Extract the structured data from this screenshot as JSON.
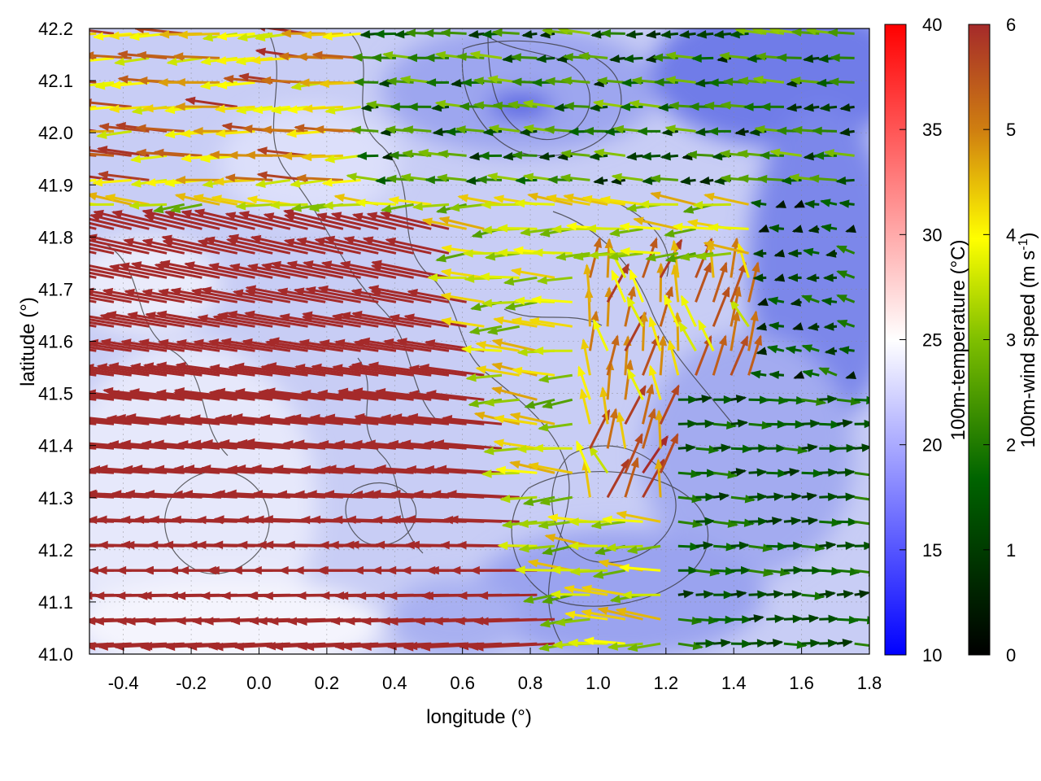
{
  "chart_data": {
    "type": "heatmap",
    "overlays": [
      "wind-vectors",
      "terrain-contours"
    ],
    "xlabel": "longitude (°)",
    "ylabel": "latitude (°)",
    "xlim": [
      -0.5,
      1.8
    ],
    "ylim": [
      41.0,
      42.2
    ],
    "x_ticks": [
      "-0.4",
      "-0.2",
      "0.0",
      "0.2",
      "0.4",
      "0.6",
      "0.8",
      "1.0",
      "1.2",
      "1.4",
      "1.6",
      "1.8"
    ],
    "y_ticks": [
      "41.0",
      "41.1",
      "41.2",
      "41.3",
      "41.4",
      "41.5",
      "41.6",
      "41.7",
      "41.8",
      "41.9",
      "42.0",
      "42.1",
      "42.2"
    ],
    "grid": true,
    "temperature_colorbar": {
      "label": "100m-temperature (°C)",
      "range": [
        10,
        40
      ],
      "ticks": [
        "10",
        "15",
        "20",
        "25",
        "30",
        "35",
        "40"
      ],
      "colors": [
        "#0000ff",
        "#ffffff",
        "#ff0000"
      ]
    },
    "wind_colorbar": {
      "label": "100m-wind speed (m s",
      "label_sup": "-1",
      "label_end": ")",
      "range": [
        0,
        6
      ],
      "ticks": [
        "0",
        "1",
        "2",
        "3",
        "4",
        "5",
        "6"
      ],
      "colors": [
        "#000000",
        "#006400",
        "#7fbf00",
        "#ffff00",
        "#d08010",
        "#a52a2a"
      ]
    },
    "temperature_field_description": "mostly 17-22 °C, warmer (~23-25 °C) in the west/southwest, cooler (~13-15 °C) in the northeast",
    "wind_field": {
      "west_sector": {
        "lon": [
          -0.5,
          0.9
        ],
        "direction": "from east (arrows pointing west)",
        "speed": 6
      },
      "central_sector": {
        "lon": [
          0.4,
          1.2
        ],
        "direction": "westward",
        "speed_range": [
          3,
          4.5
        ]
      },
      "north_sector": {
        "lat": [
          41.9,
          42.2
        ],
        "direction": "westward",
        "speed_range": [
          1,
          3
        ]
      },
      "east_coastal_sector": {
        "lon": [
          1.2,
          1.8
        ],
        "lat": [
          41.0,
          41.5
        ],
        "direction": "eastward",
        "speed_range": [
          1,
          2
        ]
      },
      "convergence_zone": {
        "lon": [
          1.0,
          1.4
        ],
        "lat": [
          41.3,
          41.7
        ],
        "direction": "northward/mixed",
        "speed_range": [
          4,
          6
        ]
      }
    }
  }
}
